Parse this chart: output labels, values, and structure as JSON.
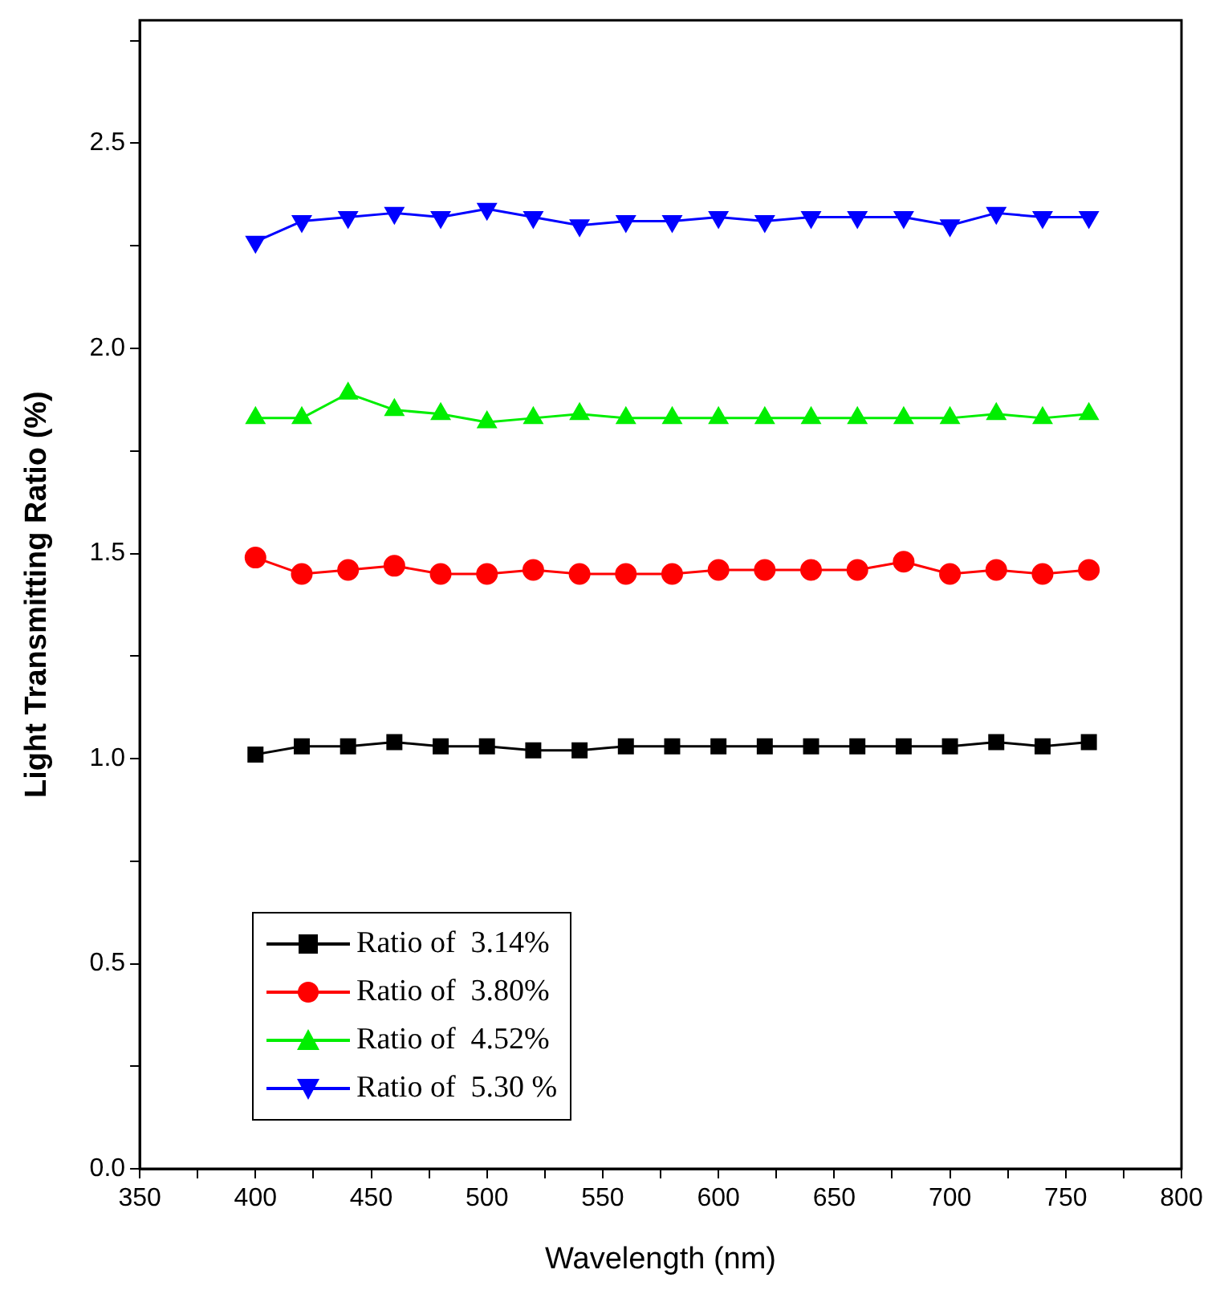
{
  "chart_data": {
    "type": "line",
    "xlabel": "Wavelength (nm)",
    "ylabel": "Light Transmitting Ratio (%)",
    "x": [
      400,
      420,
      440,
      460,
      480,
      500,
      520,
      540,
      560,
      580,
      600,
      620,
      640,
      660,
      680,
      700,
      720,
      740,
      760
    ],
    "xlim": [
      350,
      800
    ],
    "xticks": [
      350,
      {
        "value": 375,
        "label": null
      },
      400,
      {
        "value": 425,
        "label": null
      },
      450,
      {
        "value": 475,
        "label": null
      },
      500,
      {
        "value": 525,
        "label": null
      },
      550,
      {
        "value": 575,
        "label": null
      },
      600,
      {
        "value": 625,
        "label": null
      },
      650,
      {
        "value": 675,
        "label": null
      },
      700,
      {
        "value": 725,
        "label": null
      },
      750,
      {
        "value": 775,
        "label": null
      },
      800
    ],
    "ylim": [
      0,
      2.8
    ],
    "yticks": [
      {
        "value": 0,
        "label": "0.0"
      },
      {
        "value": 0.25,
        "label": null
      },
      {
        "value": 0.5,
        "label": "0.5"
      },
      {
        "value": 0.75,
        "label": null
      },
      {
        "value": 1,
        "label": "1.0"
      },
      {
        "value": 1.25,
        "label": null
      },
      {
        "value": 1.5,
        "label": "1.5"
      },
      {
        "value": 1.75,
        "label": null
      },
      {
        "value": 2,
        "label": "2.0"
      },
      {
        "value": 2.25,
        "label": null
      },
      {
        "value": 2.5,
        "label": "2.5"
      },
      {
        "value": 2.75,
        "label": null
      }
    ],
    "grid": false,
    "legend": "bottom left",
    "line_style": "solid",
    "series": [
      {
        "name": "Ratio of  3.14%",
        "color": "#000000",
        "marker": "square",
        "values": [
          1.01,
          1.03,
          1.03,
          1.04,
          1.03,
          1.03,
          1.02,
          1.02,
          1.03,
          1.03,
          1.03,
          1.03,
          1.03,
          1.03,
          1.03,
          1.03,
          1.04,
          1.03,
          1.04
        ]
      },
      {
        "name": "Ratio of  3.80%",
        "color": "#ff0000",
        "marker": "circle",
        "values": [
          1.49,
          1.45,
          1.46,
          1.47,
          1.45,
          1.45,
          1.46,
          1.45,
          1.45,
          1.45,
          1.46,
          1.46,
          1.46,
          1.46,
          1.48,
          1.45,
          1.46,
          1.45,
          1.46
        ]
      },
      {
        "name": "Ratio of  4.52%",
        "color": "#00ee00",
        "marker": "triangle",
        "values": [
          1.83,
          1.83,
          1.89,
          1.85,
          1.84,
          1.82,
          1.83,
          1.84,
          1.83,
          1.83,
          1.83,
          1.83,
          1.83,
          1.83,
          1.83,
          1.83,
          1.84,
          1.83,
          1.84
        ]
      },
      {
        "name": "Ratio of  5.30 %",
        "color": "#0000ff",
        "marker": "triangle-down",
        "values": [
          2.26,
          2.31,
          2.32,
          2.33,
          2.32,
          2.34,
          2.32,
          2.3,
          2.31,
          2.31,
          2.32,
          2.31,
          2.32,
          2.32,
          2.32,
          2.3,
          2.33,
          2.32,
          2.32
        ]
      }
    ]
  }
}
